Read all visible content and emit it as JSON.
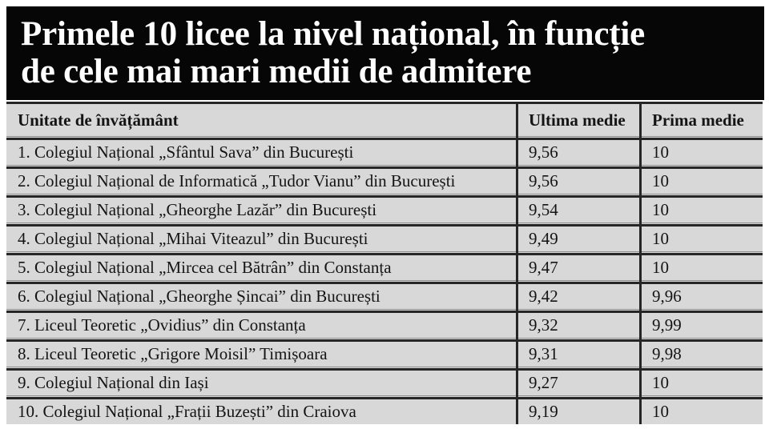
{
  "title": {
    "line1": "Primele 10 licee la nivel național, în funcție",
    "line2": "de cele mai mari medii de admitere"
  },
  "colors": {
    "banner_bg": "#060606",
    "banner_text": "#ffffff",
    "row_bg": "#d8d8d8",
    "grid_dark": "#262626",
    "grid_light": "#8f8f8f",
    "table_text": "#141414"
  },
  "chart_data": {
    "type": "table",
    "title": "Primele 10 licee la nivel național, în funcție de cele mai mari medii de admitere",
    "columns": [
      "Unitate de învățământ",
      "Ultima medie",
      "Prima medie"
    ],
    "rows": [
      [
        "1. Colegiul Național „Sfântul Sava” din București",
        "9,56",
        "10"
      ],
      [
        "2. Colegiul Național de Informatică „Tudor Vianu” din București",
        "9,56",
        "10"
      ],
      [
        "3. Colegiul Național „Gheorghe Lazăr” din București",
        "9,54",
        "10"
      ],
      [
        "4. Colegiul Național „Mihai Viteazul” din București",
        "9,49",
        "10"
      ],
      [
        "5. Colegiul Național „Mircea cel Bătrân” din Constanța",
        "9,47",
        "10"
      ],
      [
        "6. Colegiul Național „Gheorghe Șincai” din București",
        "9,42",
        "9,96"
      ],
      [
        "7. Liceul Teoretic „Ovidius” din Constanța",
        "9,32",
        "9,99"
      ],
      [
        "8. Liceul Teoretic „Grigore Moisil” Timișoara",
        "9,31",
        "9,98"
      ],
      [
        "9. Colegiul Național din Iași",
        "9,27",
        "10"
      ],
      [
        "10. Colegiul Național „Frații Buzești” din Craiova",
        "9,19",
        "10"
      ]
    ]
  }
}
